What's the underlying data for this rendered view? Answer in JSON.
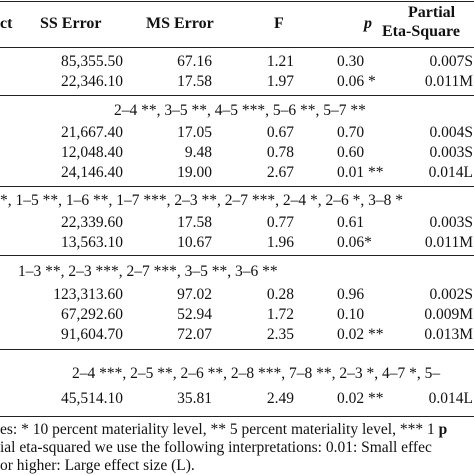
{
  "header": {
    "effect": "ct",
    "ss_error": "SS Error",
    "ms_error": "MS Error",
    "f": "F",
    "p": "p",
    "partial_line1": "Partial",
    "partial_line2": "Eta-Square"
  },
  "groups": [
    {
      "comparison": "",
      "rows": [
        {
          "ss": "85,355.50",
          "ms": "67.16",
          "f": "1.21",
          "p": "0.30",
          "eta": "0.007S"
        },
        {
          "ss": "22,346.10",
          "ms": "17.58",
          "f": "1.97",
          "p": "0.06 *",
          "eta": "0.011M"
        }
      ]
    },
    {
      "comparison": "2–4 **, 3–5 **, 4–5 ***, 5–6 **, 5–7 **",
      "rows": [
        {
          "ss": "21,667.40",
          "ms": "17.05",
          "f": "0.67",
          "p": "0.70",
          "eta": "0.004S"
        },
        {
          "ss": "12,048.40",
          "ms": "9.48",
          "f": "0.78",
          "p": "0.60",
          "eta": "0.003S"
        },
        {
          "ss": "24,146.40",
          "ms": "19.00",
          "f": "2.67",
          "p": "0.01 **",
          "eta": "0.014L"
        }
      ]
    },
    {
      "comparison": "*, 1–5 **, 1–6 **, 1–7 ***, 2–3 **, 2–7 ***, 2–4 *, 2–6 *, 3–8 *",
      "rows": [
        {
          "ss": "22,339.60",
          "ms": "17.58",
          "f": "0.77",
          "p": "0.61",
          "eta": "0.003S"
        },
        {
          "ss": "13,563.10",
          "ms": "10.67",
          "f": "1.96",
          "p": "0.06*",
          "eta": "0.011M"
        }
      ]
    },
    {
      "comparison": "1–3 **, 2–3 ***, 2–7 ***, 3–5 **, 3–6 **",
      "rows": [
        {
          "ss": "123,313.60",
          "ms": "97.02",
          "f": "0.28",
          "p": "0.96",
          "eta": "0.002S"
        },
        {
          "ss": "67,292.60",
          "ms": "52.94",
          "f": "1.72",
          "p": "0.10",
          "eta": "0.009M"
        },
        {
          "ss": "91,604.70",
          "ms": "72.07",
          "f": "2.35",
          "p": "0.02 **",
          "eta": "0.013M"
        }
      ]
    },
    {
      "comparison": "2–4 ***, 2–5 **, 2–6 **, 2–8 ***, 7–8 **, 2–3 *, 4–7 *, 5–",
      "rows": [
        {
          "ss": "45,514.10",
          "ms": "35.81",
          "f": "2.49",
          "p": "0.02 **",
          "eta": "0.014L"
        }
      ]
    }
  ],
  "notes": {
    "line1_text": "es: * 10 percent materiality level, ** 5 percent materiality level, *** 1 ",
    "line1_tail": "p",
    "line2": "ial eta-squared we use the following interpretations: 0.01: Small effec",
    "line3": "or higher: Large effect size (L)."
  }
}
